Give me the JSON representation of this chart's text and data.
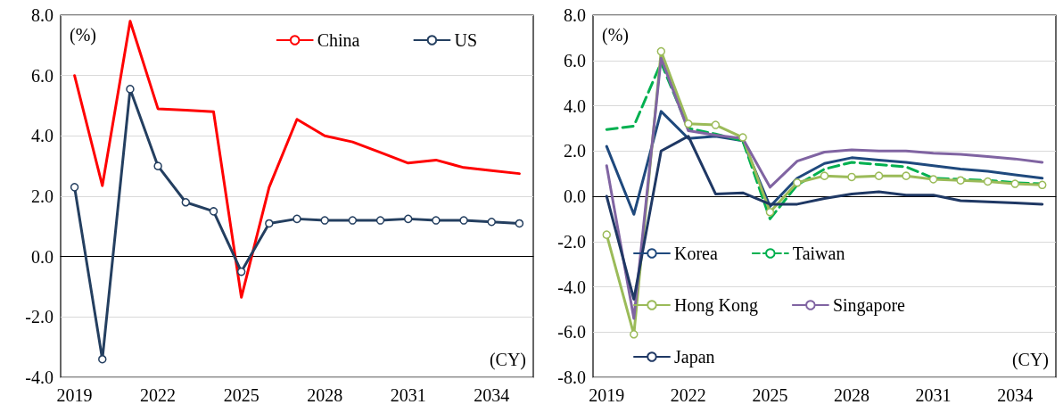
{
  "chart_data": [
    {
      "type": "line",
      "categories": [
        "2019",
        null,
        null,
        "2022",
        null,
        null,
        "2025",
        null,
        null,
        "2028",
        null,
        null,
        "2031",
        null,
        null,
        "2034",
        null
      ],
      "series": [
        {
          "name": "China",
          "color": "#ff0000",
          "marker": "none",
          "values": [
            6.0,
            2.35,
            7.8,
            4.9,
            4.85,
            4.8,
            -1.35,
            2.3,
            4.55,
            4.0,
            3.8,
            3.45,
            3.1,
            3.2,
            2.95,
            2.85,
            2.75
          ]
        },
        {
          "name": "US",
          "color": "#243f60",
          "marker": "circle",
          "values": [
            2.3,
            -3.4,
            5.55,
            3.0,
            1.8,
            1.5,
            -0.5,
            1.1,
            1.25,
            1.2,
            1.2,
            1.2,
            1.25,
            1.2,
            1.2,
            1.15,
            1.1
          ]
        }
      ],
      "ylim": [
        -4,
        8
      ],
      "yticks": [
        {
          "value": -4,
          "label": "-4.0"
        },
        {
          "value": -2,
          "label": "-2.0"
        },
        {
          "value": 0,
          "label": "0.0"
        },
        {
          "value": 2,
          "label": "2.0"
        },
        {
          "value": 4,
          "label": "4.0"
        },
        {
          "value": 6,
          "label": "6.0"
        },
        {
          "value": 8,
          "label": "8.0"
        }
      ],
      "grid": "y",
      "legend": "top right",
      "line_style": "solid",
      "annotations": [
        "(%)",
        "(CY)"
      ]
    },
    {
      "type": "line",
      "categories": [
        "2019",
        null,
        null,
        "2022",
        null,
        null,
        "2025",
        null,
        null,
        "2028",
        null,
        null,
        "2031",
        null,
        null,
        "2034",
        null
      ],
      "series": [
        {
          "name": "Korea",
          "color": "#1f497d",
          "marker": "none",
          "line_style": "solid",
          "values": [
            2.2,
            -0.8,
            3.75,
            2.55,
            2.65,
            2.45,
            -0.45,
            0.8,
            1.45,
            1.7,
            1.6,
            1.5,
            1.35,
            1.2,
            1.1,
            0.95,
            0.8
          ]
        },
        {
          "name": "Taiwan",
          "color": "#00b050",
          "marker": "none",
          "line_style": "dashed",
          "values": [
            2.95,
            3.1,
            5.9,
            3.0,
            2.75,
            2.45,
            -1.0,
            0.5,
            1.2,
            1.5,
            1.4,
            1.3,
            0.8,
            0.75,
            0.7,
            0.6,
            0.55
          ]
        },
        {
          "name": "Hong Kong",
          "color": "#9bbb59",
          "marker": "circle",
          "line_style": "solid",
          "values": [
            -1.7,
            -6.1,
            6.4,
            3.2,
            3.15,
            2.6,
            -0.7,
            0.6,
            0.9,
            0.85,
            0.9,
            0.9,
            0.75,
            0.7,
            0.65,
            0.55,
            0.5
          ]
        },
        {
          "name": "Singapore",
          "color": "#8064a2",
          "marker": "none",
          "line_style": "solid",
          "values": [
            1.35,
            -5.4,
            6.1,
            2.9,
            2.7,
            2.55,
            0.4,
            1.55,
            1.95,
            2.05,
            2.0,
            2.0,
            1.9,
            1.85,
            1.75,
            1.65,
            1.5
          ]
        },
        {
          "name": "Japan",
          "color": "#1f3864",
          "marker": "none",
          "line_style": "solid",
          "values": [
            0.0,
            -4.55,
            2.0,
            2.65,
            0.1,
            0.15,
            -0.35,
            -0.35,
            -0.1,
            0.1,
            0.2,
            0.05,
            0.05,
            -0.2,
            -0.25,
            -0.3,
            -0.35
          ]
        }
      ],
      "ylim": [
        -8,
        8
      ],
      "yticks": [
        {
          "value": -8,
          "label": "-8.0"
        },
        {
          "value": -6,
          "label": "-6.0"
        },
        {
          "value": -4,
          "label": "-4.0"
        },
        {
          "value": -2,
          "label": "-2.0"
        },
        {
          "value": 0,
          "label": "0.0"
        },
        {
          "value": 2,
          "label": "2.0"
        },
        {
          "value": 4,
          "label": "4.0"
        },
        {
          "value": 6,
          "label": "6.0"
        },
        {
          "value": 8,
          "label": "8.0"
        }
      ],
      "grid": "y",
      "legend": "bottom left",
      "annotations": [
        "(%)",
        "(CY)"
      ]
    }
  ]
}
